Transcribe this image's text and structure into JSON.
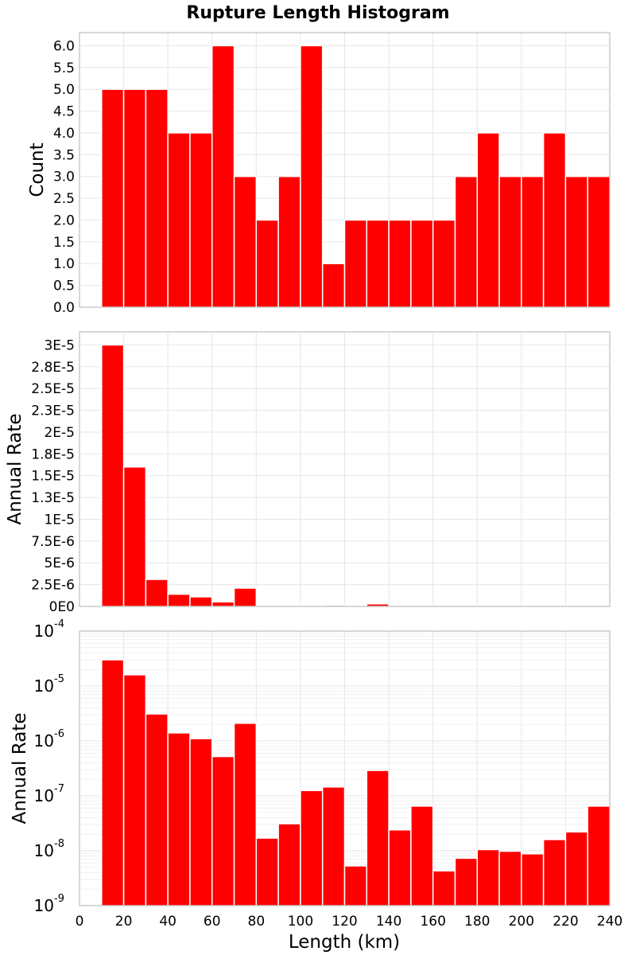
{
  "chart_data": {
    "type": "bar",
    "title": "Rupture Length Histogram",
    "xlabel": "Length (km)",
    "xlim": [
      0,
      240
    ],
    "xticks": [
      0,
      20,
      40,
      60,
      80,
      100,
      120,
      140,
      160,
      180,
      200,
      220,
      240
    ],
    "bin_width": 10,
    "bin_starts": [
      10,
      20,
      30,
      40,
      50,
      60,
      70,
      80,
      90,
      100,
      110,
      120,
      130,
      140,
      150,
      160,
      170,
      180,
      190,
      200,
      210,
      220,
      230
    ],
    "bar_color": "#ff0000",
    "panels": [
      {
        "name": "count",
        "ylabel": "Count",
        "scale": "linear",
        "ylim": [
          0,
          6.3
        ],
        "yticks": [
          0,
          0.5,
          1,
          1.5,
          2,
          2.5,
          3,
          3.5,
          4,
          4.5,
          5,
          5.5,
          6
        ],
        "ytick_labels": [
          "0.0",
          "0.5",
          "1.0",
          "1.5",
          "2.0",
          "2.5",
          "3.0",
          "3.5",
          "4.0",
          "4.5",
          "5.0",
          "5.5",
          "6.0"
        ],
        "values": [
          5,
          5,
          5,
          4,
          4,
          6,
          3,
          2,
          3,
          6,
          1,
          2,
          2,
          2,
          2,
          2,
          3,
          4,
          3,
          3,
          4,
          3,
          3
        ]
      },
      {
        "name": "annual-rate-linear",
        "ylabel": "Annual Rate",
        "scale": "linear",
        "ylim": [
          0,
          3.15e-05
        ],
        "yticks": [
          0,
          2.5e-06,
          5e-06,
          7.5e-06,
          1e-05,
          1.25e-05,
          1.5e-05,
          1.75e-05,
          2e-05,
          2.25e-05,
          2.5e-05,
          2.75e-05,
          3e-05
        ],
        "ytick_labels": [
          "0E0",
          "2.5E-6",
          "5E-6",
          "7.5E-6",
          "1E-5",
          "1.3E-5",
          "1.5E-5",
          "1.8E-5",
          "2E-5",
          "2.3E-5",
          "2.5E-5",
          "2.8E-5",
          "3E-5"
        ],
        "values": [
          3e-05,
          1.6e-05,
          3.1e-06,
          1.4e-06,
          1.1e-06,
          5.2e-07,
          2.1e-06,
          1.7e-08,
          3.1e-08,
          1.25e-07,
          1.45e-07,
          5.3e-09,
          2.9e-07,
          2.4e-08,
          6.5e-08,
          4.3e-09,
          7.3e-09,
          1.05e-08,
          9.8e-09,
          8.8e-09,
          1.6e-08,
          2.2e-08,
          6.5e-08
        ]
      },
      {
        "name": "annual-rate-log",
        "ylabel": "Annual Rate",
        "scale": "log",
        "ylim": [
          1e-09,
          0.0001
        ],
        "ytick_exponents": [
          "-9",
          "-8",
          "-7",
          "-6",
          "-5",
          "-4"
        ],
        "ytick_base": "10",
        "values": [
          3e-05,
          1.6e-05,
          3.1e-06,
          1.4e-06,
          1.1e-06,
          5.2e-07,
          2.1e-06,
          1.7e-08,
          3.1e-08,
          1.25e-07,
          1.45e-07,
          5.3e-09,
          2.9e-07,
          2.4e-08,
          6.5e-08,
          4.3e-09,
          7.3e-09,
          1.05e-08,
          9.8e-09,
          8.8e-09,
          1.6e-08,
          2.2e-08,
          6.5e-08
        ]
      }
    ]
  }
}
